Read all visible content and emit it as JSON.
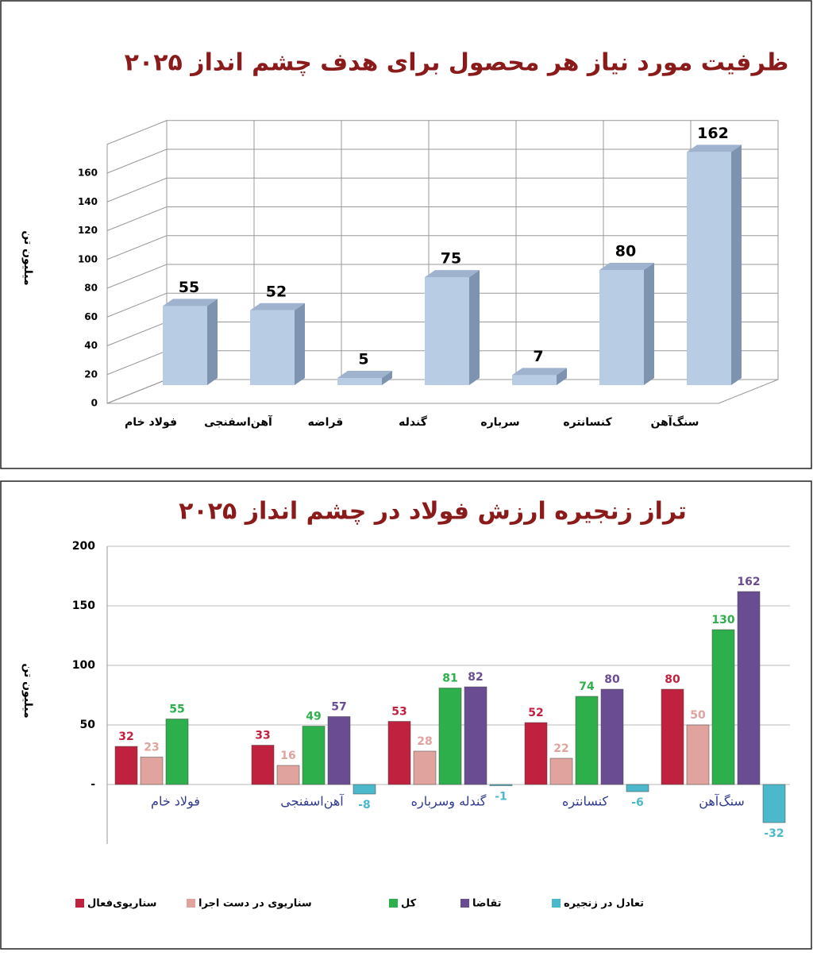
{
  "chart_data": [
    {
      "type": "bar3d",
      "title": "ظرفیت مورد نیاز هر محصول برای هدف چشم انداز ۲۰۲۵",
      "y_label": "میلیون تن",
      "categories": [
        "فولاد خام",
        "آهن‌اسفنجی",
        "قراضه",
        "گندله",
        "سرباره",
        "کنسانتره",
        "سنگ‌آهن"
      ],
      "values": [
        55,
        52,
        5,
        75,
        7,
        80,
        162
      ],
      "color": "#b8cce4",
      "ylim": [
        0,
        180
      ],
      "yticks": [
        0,
        20,
        40,
        60,
        80,
        100,
        120,
        140,
        160
      ],
      "grid": true
    },
    {
      "type": "bar",
      "title": "تراز زنجیره ارزش فولاد در چشم انداز ۲۰۲۵",
      "y_label": "میلیون تن",
      "categories": [
        "فولاد خام",
        "آهن‌اسفنجی",
        "گندله وسرباره",
        "کنسانتره",
        "سنگ‌آهن"
      ],
      "series": [
        {
          "name": "سناریوی‌فعال",
          "color": "#c0213f",
          "values": [
            32,
            33,
            53,
            52,
            80
          ]
        },
        {
          "name": "سناریوی در دست اجرا",
          "color": "#e0a39e",
          "values": [
            23,
            16,
            28,
            22,
            50
          ]
        },
        {
          "name": "کل",
          "color": "#2db04b",
          "values": [
            55,
            49,
            81,
            74,
            130
          ]
        },
        {
          "name": "تقاضا",
          "color": "#6a4c93",
          "values": [
            null,
            57,
            82,
            80,
            162
          ]
        },
        {
          "name": "تعادل در زنجیره",
          "color": "#4bb8cc",
          "values": [
            null,
            -8,
            -1,
            -6,
            -32
          ]
        }
      ],
      "ylim": [
        -50,
        200
      ],
      "yticks": [
        {
          "value": 0,
          "label": "-"
        },
        50,
        100,
        150,
        200
      ],
      "grid": true
    }
  ]
}
